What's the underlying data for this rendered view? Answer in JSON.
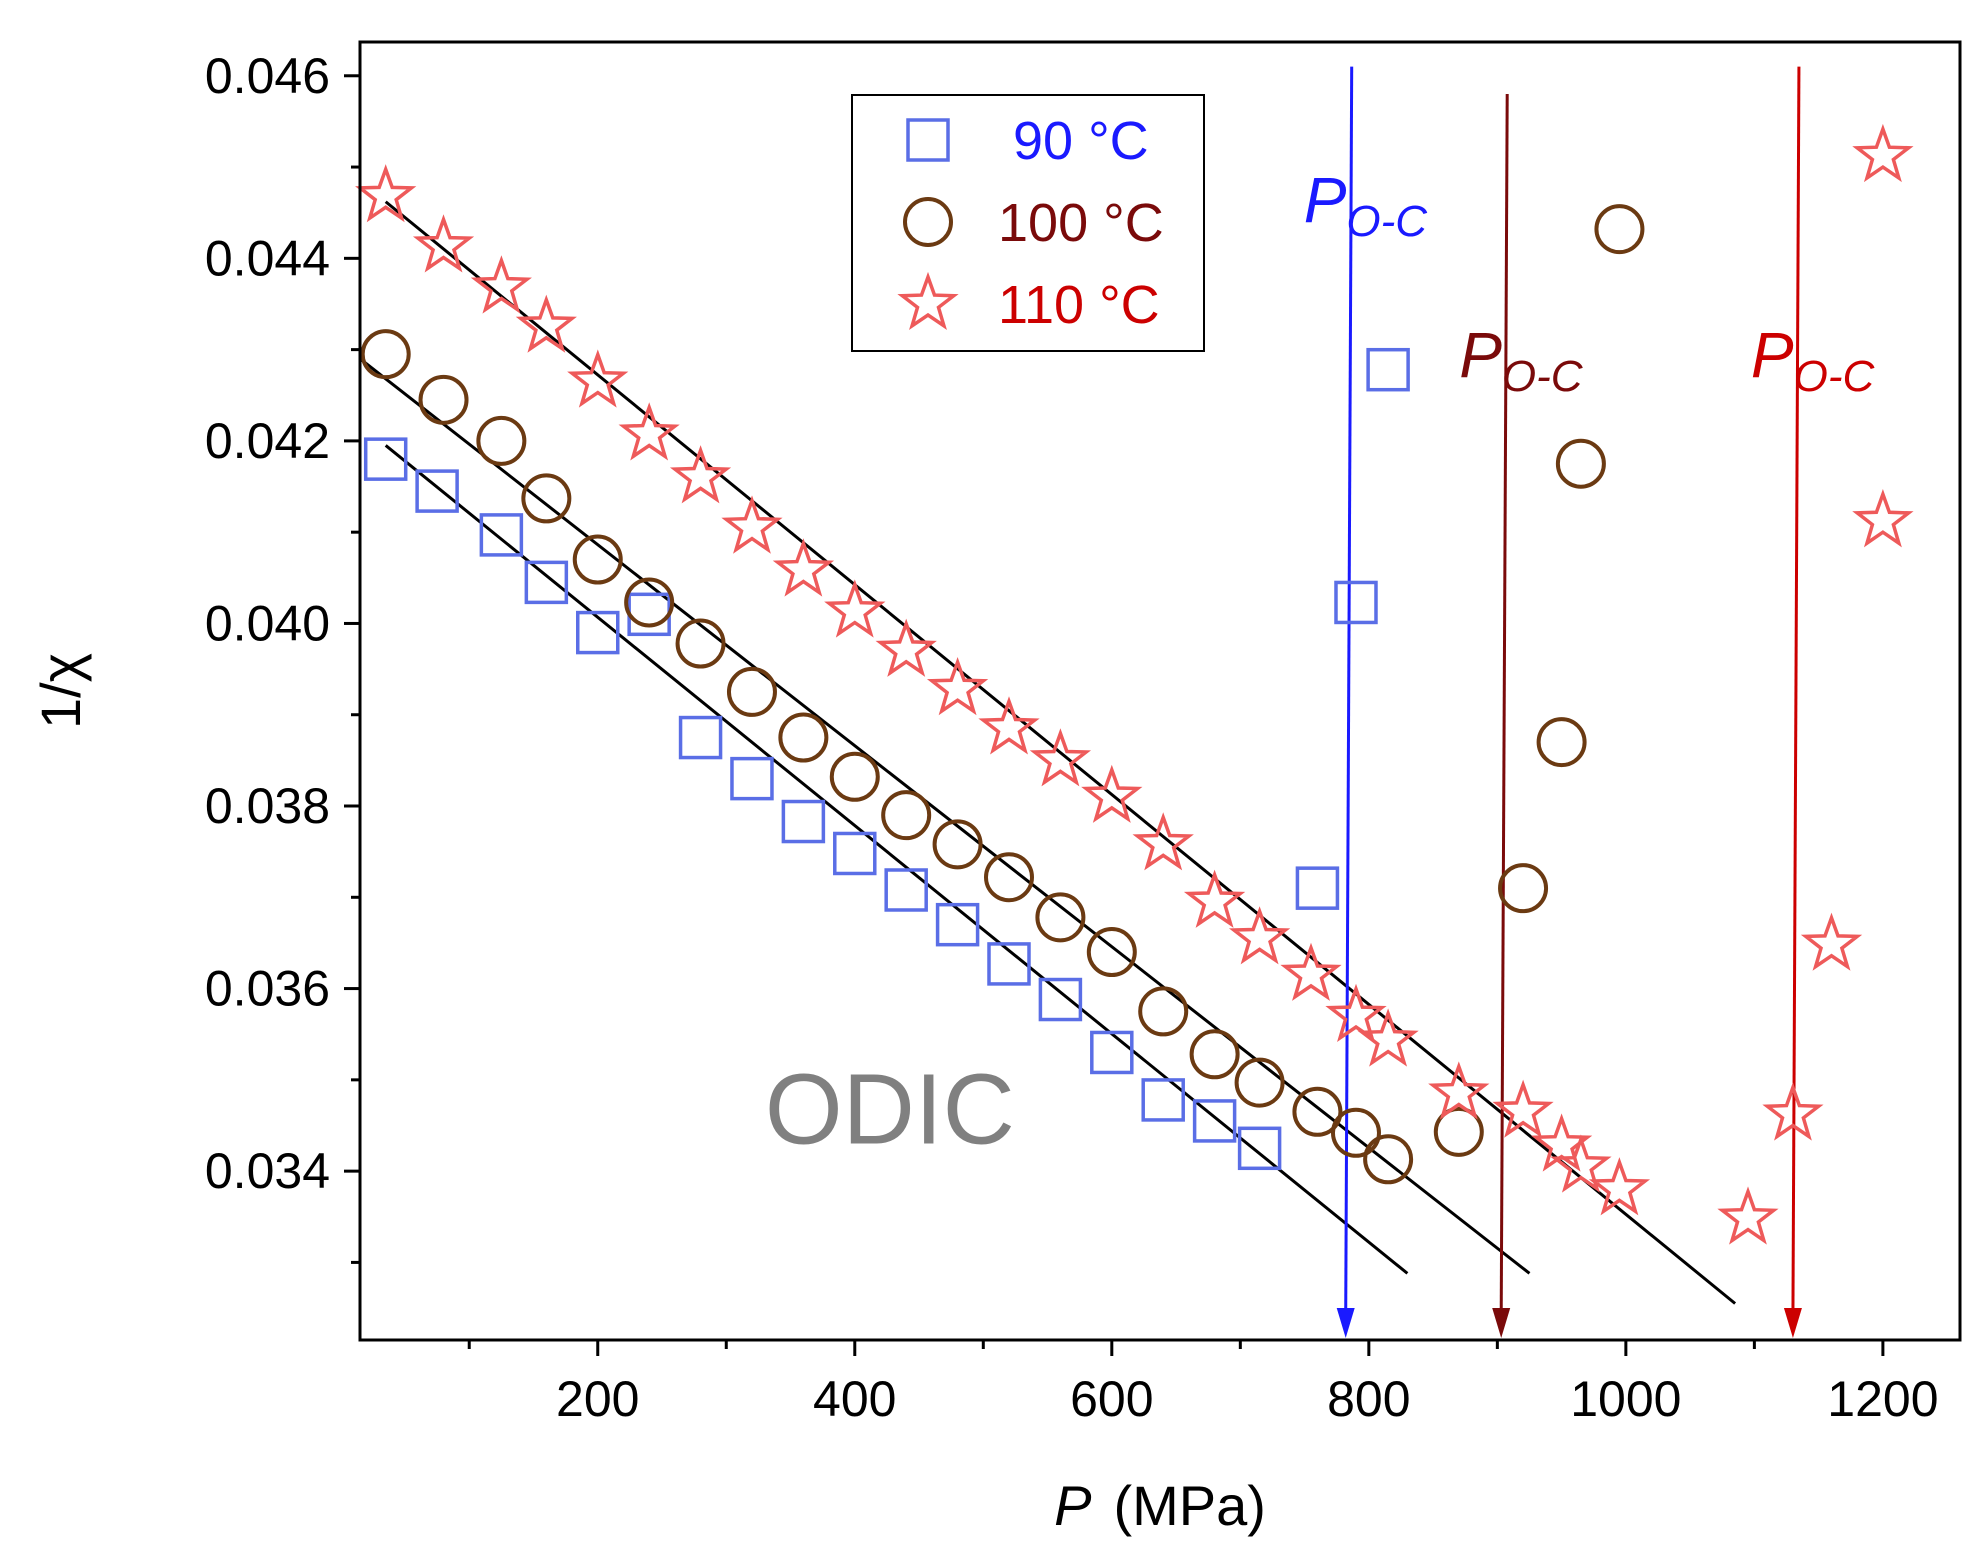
{
  "chart_data": {
    "type": "scatter",
    "xlabel_var": "P",
    "xlabel_unit": "(MPa)",
    "ylabel": "1/χ",
    "xlim": [
      15,
      1260
    ],
    "ylim": [
      0.03215,
      0.04637
    ],
    "x_ticks": [
      200,
      400,
      600,
      800,
      1000,
      1200
    ],
    "x_tick_labels": [
      "200",
      "400",
      "600",
      "800",
      "1000",
      "1200"
    ],
    "x_minor_ticks": [
      100,
      300,
      500,
      700,
      900,
      1100
    ],
    "y_ticks": [
      0.034,
      0.036,
      0.038,
      0.04,
      0.042,
      0.044,
      0.046
    ],
    "y_tick_labels": [
      "0.034",
      "0.036",
      "0.038",
      "0.040",
      "0.042",
      "0.044",
      "0.046"
    ],
    "y_minor_ticks": [
      0.033,
      0.035,
      0.037,
      0.039,
      0.041,
      0.043,
      0.045
    ],
    "grid": false,
    "legend_position": "top-center",
    "series": [
      {
        "name": "90 °C",
        "marker": "square",
        "color": "#5a6ee6",
        "label_color": "#1a1aff",
        "x": [
          35,
          75,
          125,
          160,
          200,
          240,
          280,
          320,
          360,
          400,
          440,
          480,
          520,
          560,
          600,
          640,
          680,
          715,
          760,
          790,
          815
        ],
        "y": [
          0.0418,
          0.04145,
          0.04097,
          0.04045,
          0.0399,
          0.0401,
          0.03875,
          0.0383,
          0.03783,
          0.03748,
          0.03708,
          0.0367,
          0.03627,
          0.03588,
          0.0353,
          0.03478,
          0.03455,
          0.03425,
          0.0371,
          0.04023,
          0.04278
        ]
      },
      {
        "name": "100 °C",
        "marker": "circle",
        "color": "#6b3a12",
        "label_color": "#7a0a0a",
        "x": [
          35,
          80,
          125,
          160,
          200,
          240,
          280,
          320,
          360,
          400,
          440,
          480,
          520,
          560,
          600,
          640,
          680,
          715,
          760,
          790,
          815,
          870,
          920,
          950,
          965,
          995
        ],
        "y": [
          0.04295,
          0.04245,
          0.042,
          0.04137,
          0.0407,
          0.04023,
          0.03978,
          0.03925,
          0.03875,
          0.03832,
          0.0379,
          0.03758,
          0.03722,
          0.03678,
          0.0364,
          0.03575,
          0.03528,
          0.03497,
          0.03465,
          0.03442,
          0.03413,
          0.03443,
          0.0371,
          0.0387,
          0.04175,
          0.04432
        ]
      },
      {
        "name": "110 °C",
        "marker": "star",
        "color": "#ee5a5a",
        "label_color": "#cc0000",
        "x": [
          35,
          80,
          125,
          160,
          200,
          240,
          280,
          320,
          360,
          400,
          440,
          480,
          520,
          560,
          600,
          640,
          680,
          715,
          755,
          790,
          815,
          870,
          920,
          950,
          965,
          995,
          1095,
          1130,
          1160,
          1200,
          1200
        ],
        "y": [
          0.04468,
          0.04413,
          0.04368,
          0.04325,
          0.04265,
          0.04207,
          0.0416,
          0.04105,
          0.04058,
          0.04013,
          0.0397,
          0.03928,
          0.03885,
          0.0385,
          0.0381,
          0.03758,
          0.03695,
          0.03655,
          0.03615,
          0.0357,
          0.03543,
          0.03485,
          0.03465,
          0.03428,
          0.03405,
          0.0338,
          0.03348,
          0.03462,
          0.03648,
          0.04112,
          0.04512
        ]
      }
    ],
    "fit_lines": [
      {
        "x": [
          35,
          830
        ],
        "y": [
          0.04195,
          0.03288
        ]
      },
      {
        "x": [
          15,
          925
        ],
        "y": [
          0.0429,
          0.03288
        ]
      },
      {
        "x": [
          35,
          1085
        ],
        "y": [
          0.04462,
          0.03255
        ]
      }
    ],
    "arrows": [
      {
        "x": 782,
        "color": "#1a1aff",
        "label_main": "P",
        "label_sub": "O-C",
        "y_top": 0.0461,
        "label_y": 0.0444
      },
      {
        "x": 903,
        "color": "#7a0a0a",
        "label_main": "P",
        "label_sub": "O-C",
        "y_top": 0.0458,
        "label_y": 0.0427
      },
      {
        "x": 1130,
        "color": "#cc0000",
        "label_main": "P",
        "label_sub": "O-C",
        "y_top": 0.0461,
        "label_y": 0.0427
      }
    ],
    "annotation": {
      "text": "ODIC",
      "color": "#808080",
      "x": 330,
      "y": 0.0343
    }
  }
}
